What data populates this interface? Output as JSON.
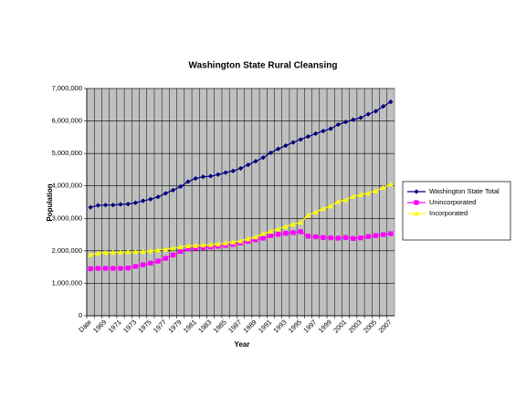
{
  "chart_data": {
    "type": "line",
    "title": "Washington State Rural Cleansing",
    "x_label": "Year",
    "y_label": "Population",
    "categories": [
      "Date",
      null,
      "1969",
      null,
      "1971",
      null,
      "1973",
      null,
      "1975",
      null,
      "1977",
      null,
      "1979",
      null,
      "1981",
      null,
      "1983",
      null,
      "1985",
      null,
      "1987",
      null,
      "1989",
      null,
      "1991",
      null,
      "1993",
      null,
      "1995",
      null,
      "1997",
      null,
      "1999",
      null,
      "2001",
      null,
      "2003",
      null,
      "2005",
      null,
      "2007"
    ],
    "series": [
      {
        "name": "Washington State Total",
        "color": "#000080",
        "marker": "diamond",
        "values": [
          3340000,
          3400000,
          3410000,
          3410000,
          3430000,
          3440000,
          3480000,
          3540000,
          3590000,
          3660000,
          3770000,
          3870000,
          3980000,
          4130000,
          4230000,
          4280000,
          4300000,
          4350000,
          4410000,
          4460000,
          4540000,
          4650000,
          4760000,
          4870000,
          5020000,
          5140000,
          5240000,
          5340000,
          5430000,
          5520000,
          5610000,
          5690000,
          5760000,
          5890000,
          5970000,
          6040000,
          6100000,
          6210000,
          6300000,
          6450000,
          6590000
        ]
      },
      {
        "name": "Unincorporated",
        "color": "#ff00ff",
        "marker": "square",
        "values": [
          1450000,
          1460000,
          1460000,
          1460000,
          1460000,
          1470000,
          1520000,
          1570000,
          1620000,
          1680000,
          1770000,
          1870000,
          1980000,
          2060000,
          2080000,
          2100000,
          2120000,
          2140000,
          2170000,
          2200000,
          2240000,
          2290000,
          2340000,
          2390000,
          2470000,
          2510000,
          2540000,
          2560000,
          2590000,
          2450000,
          2430000,
          2410000,
          2400000,
          2390000,
          2410000,
          2380000,
          2400000,
          2440000,
          2470000,
          2500000,
          2530000
        ]
      },
      {
        "name": "Incorporated",
        "color": "#ffff00",
        "marker": "triangle",
        "values": [
          1880000,
          1930000,
          1950000,
          1950000,
          1960000,
          1970000,
          1970000,
          1980000,
          2000000,
          2020000,
          2050000,
          2080000,
          2120000,
          2150000,
          2160000,
          2180000,
          2190000,
          2210000,
          2240000,
          2270000,
          2310000,
          2370000,
          2430000,
          2530000,
          2600000,
          2680000,
          2750000,
          2820000,
          2880000,
          3100000,
          3200000,
          3300000,
          3380000,
          3520000,
          3570000,
          3680000,
          3730000,
          3780000,
          3850000,
          3950000,
          4060000
        ]
      }
    ],
    "ylim": [
      0,
      7000000
    ],
    "yticks": [
      0,
      {
        "value": 1000000,
        "label": "1,000,000"
      },
      {
        "value": 2000000,
        "label": "2,000,000"
      },
      {
        "value": 3000000,
        "label": "3,000,000"
      },
      {
        "value": 4000000,
        "label": "4,000,000"
      },
      {
        "value": 5000000,
        "label": "5,000,000"
      },
      {
        "value": 6000000,
        "label": "6,000,000"
      },
      {
        "value": 7000000,
        "label": "7,000,000"
      }
    ],
    "grid": true,
    "plot_background": "#c0c0c0",
    "legend": "right"
  }
}
